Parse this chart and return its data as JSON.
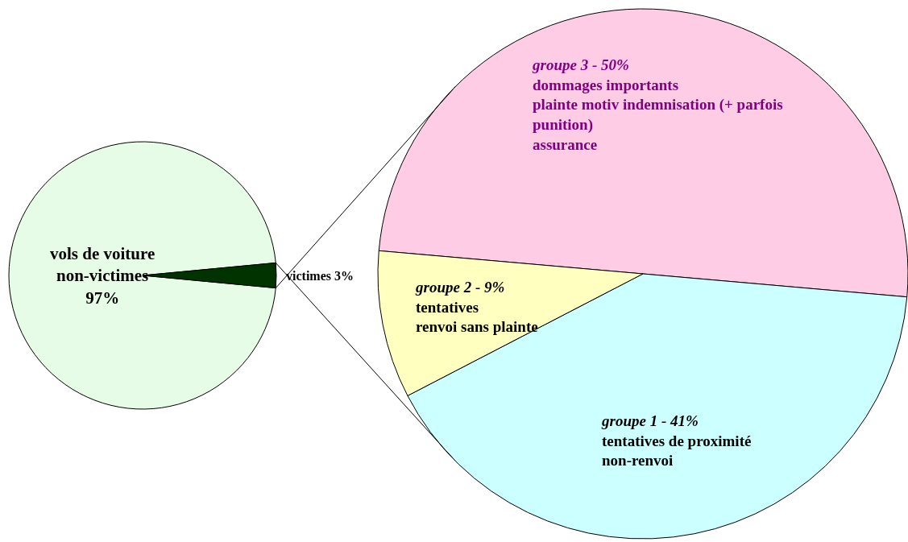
{
  "chart_data": [
    {
      "type": "pie",
      "categories": [
        "vols de voiture non-victimes",
        "victimes"
      ],
      "values": [
        97,
        3
      ],
      "value_labels": [
        "97%",
        "3%"
      ],
      "colors": [
        "#e6fce6",
        "#003300"
      ]
    },
    {
      "type": "pie",
      "categories": [
        "groupe 3 - 50%\ndommages importants\nplainte motiv indemnisation (+ parfois punition)\nassurance",
        "groupe 1 - 41%\ntentatives de proximité\nnon-renvoi",
        "groupe 2 - 9%\ntentatives\nrenvoi sans plainte"
      ],
      "values": [
        50,
        41,
        9
      ],
      "colors": [
        "#ffcce6",
        "#ccffff",
        "#ffffc0"
      ]
    }
  ]
}
